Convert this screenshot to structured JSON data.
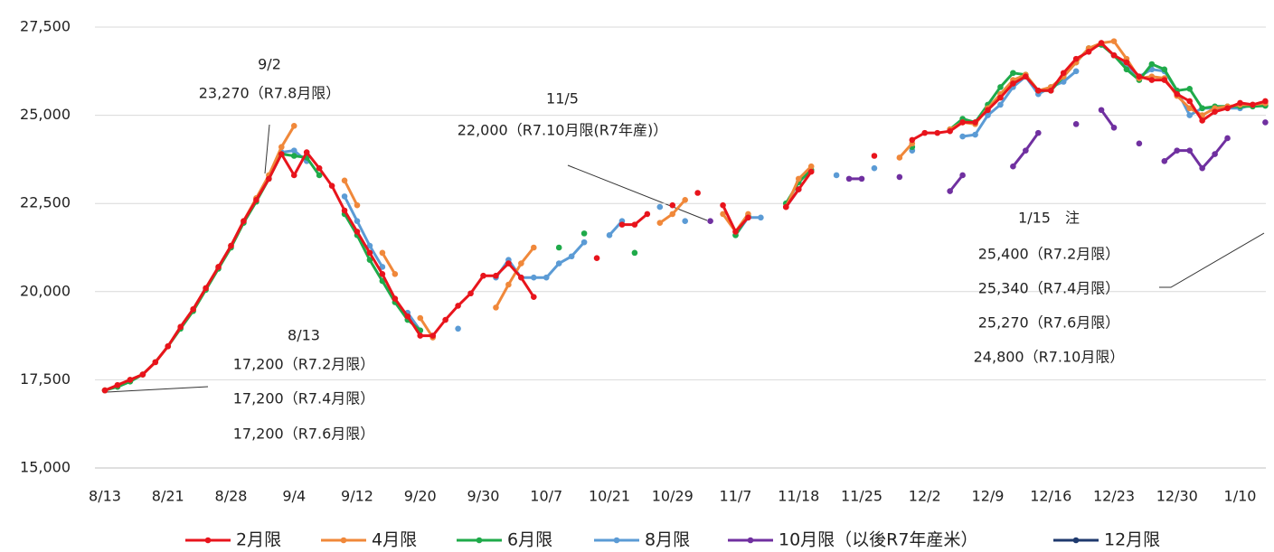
{
  "chart_data": {
    "type": "line",
    "categories": [
      "8/13",
      null,
      null,
      null,
      null,
      "8/21",
      null,
      null,
      null,
      null,
      "8/28",
      null,
      null,
      null,
      null,
      "9/4",
      null,
      null,
      null,
      null,
      "9/12",
      null,
      null,
      null,
      null,
      "9/20",
      null,
      null,
      null,
      null,
      "9/30",
      null,
      null,
      null,
      null,
      "10/7",
      null,
      null,
      null,
      null,
      "10/21",
      null,
      null,
      null,
      null,
      "10/29",
      null,
      null,
      null,
      null,
      "11/7",
      null,
      null,
      null,
      null,
      "11/18",
      null,
      null,
      null,
      null,
      "11/25",
      null,
      null,
      null,
      null,
      "12/2",
      null,
      null,
      null,
      null,
      "12/9",
      null,
      null,
      null,
      null,
      "12/16",
      null,
      null,
      null,
      null,
      "12/23",
      null,
      null,
      null,
      null,
      "12/30",
      null,
      null,
      null,
      null,
      "1/10",
      null,
      null
    ],
    "ylim": [
      15000,
      27500
    ],
    "yticks": [
      {
        "value": 15000,
        "label": "15,000"
      },
      {
        "value": 17500,
        "label": "17,500"
      },
      {
        "value": 20000,
        "label": "20,000"
      },
      {
        "value": 22500,
        "label": "22,500"
      },
      {
        "value": 25000,
        "label": "25,000"
      },
      {
        "value": 27500,
        "label": "27,500"
      }
    ],
    "grid": true,
    "legend": "bottom",
    "series": [
      {
        "name": "2月限",
        "color": "#e8141c",
        "values": [
          17200,
          17350,
          17500,
          17650,
          18000,
          18450,
          19000,
          19500,
          20100,
          20700,
          21300,
          22000,
          22600,
          23200,
          23900,
          23300,
          23950,
          23500,
          23000,
          22300,
          21700,
          21100,
          20500,
          19800,
          19300,
          18750,
          18750,
          19200,
          19600,
          19950,
          20450,
          20450,
          20800,
          20400,
          19850,
          null,
          null,
          null,
          null,
          20950,
          null,
          21900,
          21900,
          22200,
          null,
          22450,
          null,
          22800,
          null,
          22450,
          21700,
          22100,
          null,
          null,
          22400,
          22900,
          23400,
          null,
          null,
          null,
          null,
          23850,
          null,
          null,
          24300,
          24500,
          24500,
          24550,
          24800,
          24800,
          25150,
          25500,
          25900,
          26100,
          25700,
          25700,
          26200,
          26600,
          26800,
          27050,
          26700,
          26500,
          26100,
          26000,
          26000,
          25600,
          25400,
          24850,
          25100,
          25200,
          25350,
          25300,
          25400
        ]
      },
      {
        "name": "4月限",
        "color": "#f0883a",
        "values": [
          17200,
          17350,
          17500,
          17650,
          18000,
          18450,
          19000,
          19500,
          20100,
          20700,
          21300,
          22000,
          22650,
          23300,
          24100,
          24700,
          null,
          null,
          null,
          23150,
          22450,
          null,
          21100,
          20500,
          null,
          19250,
          18700,
          null,
          null,
          null,
          null,
          19550,
          20200,
          20800,
          21250,
          null,
          null,
          null,
          null,
          null,
          null,
          null,
          null,
          null,
          21950,
          22200,
          22600,
          null,
          null,
          22200,
          21700,
          22200,
          null,
          null,
          22400,
          23200,
          23550,
          null,
          null,
          null,
          null,
          null,
          null,
          23800,
          24200,
          null,
          null,
          24600,
          24800,
          24750,
          25200,
          25600,
          26000,
          26150,
          25700,
          25800,
          26100,
          26500,
          26900,
          27050,
          27100,
          26600,
          26050,
          26100,
          26050,
          25550,
          25200,
          25000,
          25200,
          25250,
          25300,
          25300,
          25340
        ]
      },
      {
        "name": "6月限",
        "color": "#1faa4a",
        "values": [
          17200,
          17300,
          17450,
          17650,
          18000,
          18450,
          18950,
          19450,
          20050,
          20650,
          21250,
          21950,
          22550,
          23200,
          23900,
          23850,
          23800,
          23300,
          null,
          22200,
          21600,
          20900,
          20300,
          19700,
          19200,
          18900,
          null,
          null,
          null,
          null,
          null,
          null,
          null,
          null,
          null,
          null,
          21250,
          null,
          21650,
          null,
          null,
          null,
          21100,
          null,
          null,
          null,
          null,
          null,
          null,
          null,
          21600,
          22150,
          null,
          null,
          22500,
          23100,
          23450,
          null,
          null,
          null,
          null,
          null,
          null,
          null,
          24100,
          null,
          null,
          24600,
          24900,
          24800,
          25300,
          25800,
          26200,
          26150,
          25700,
          25700,
          26100,
          26500,
          26900,
          27000,
          26700,
          26300,
          26000,
          26450,
          26300,
          25700,
          25750,
          25200,
          25250,
          25250,
          25250,
          25250,
          25270
        ]
      },
      {
        "name": "8月限",
        "color": "#5b9bd5",
        "values": [
          null,
          null,
          null,
          null,
          null,
          null,
          null,
          null,
          null,
          null,
          null,
          null,
          null,
          23200,
          23950,
          24000,
          23700,
          null,
          null,
          22700,
          22000,
          21300,
          20700,
          null,
          19400,
          18900,
          null,
          null,
          18950,
          null,
          null,
          20400,
          20900,
          20400,
          20400,
          20400,
          20800,
          21000,
          21400,
          null,
          21600,
          22000,
          null,
          null,
          22400,
          null,
          22000,
          null,
          null,
          null,
          21600,
          22100,
          22100,
          null,
          22500,
          null,
          null,
          null,
          23300,
          null,
          null,
          23500,
          null,
          null,
          24000,
          null,
          null,
          null,
          24400,
          24450,
          25000,
          25300,
          25800,
          26100,
          25600,
          25800,
          25950,
          26250,
          null,
          null,
          26700,
          26400,
          26100,
          26300,
          26250,
          25700,
          25000,
          25200,
          25200,
          25200,
          25200,
          25300,
          null
        ]
      },
      {
        "name": "10月限（以後R7年産米）",
        "color": "#7030a0",
        "values": [
          null,
          null,
          null,
          null,
          null,
          null,
          null,
          null,
          null,
          null,
          null,
          null,
          null,
          null,
          null,
          null,
          null,
          null,
          null,
          null,
          null,
          null,
          null,
          null,
          null,
          null,
          null,
          null,
          null,
          null,
          null,
          null,
          null,
          null,
          null,
          null,
          null,
          null,
          null,
          null,
          null,
          null,
          null,
          null,
          null,
          null,
          null,
          null,
          22000,
          null,
          null,
          null,
          null,
          null,
          22400,
          22900,
          null,
          null,
          null,
          23200,
          23200,
          null,
          null,
          23250,
          null,
          null,
          null,
          22850,
          23300,
          null,
          null,
          null,
          23550,
          24000,
          24500,
          null,
          null,
          24750,
          null,
          25150,
          24650,
          null,
          24200,
          null,
          23700,
          24000,
          24000,
          23500,
          23900,
          24350,
          null,
          null,
          24800
        ]
      },
      {
        "name": "12月限",
        "color": "#1f3a6e",
        "values": [
          null,
          null,
          null,
          null,
          null,
          null,
          null,
          null,
          null,
          null,
          null,
          null,
          null,
          null,
          null,
          null,
          null,
          null,
          null,
          null,
          null,
          null,
          null,
          null,
          null,
          null,
          null,
          null,
          null,
          null,
          null,
          null,
          null,
          null,
          null,
          null,
          null,
          null,
          null,
          null,
          null,
          null,
          null,
          null,
          null,
          null,
          null,
          null,
          null,
          null,
          null,
          null,
          null,
          null,
          null,
          null,
          null,
          null,
          null,
          null,
          null,
          null,
          null,
          null,
          null,
          null,
          null,
          null,
          null,
          null,
          null,
          null,
          null,
          null,
          null,
          null,
          null,
          null,
          null,
          null,
          null,
          null,
          null,
          null,
          null,
          null,
          null,
          null,
          null,
          null,
          null,
          null,
          null
        ]
      }
    ],
    "annotations": [
      {
        "lines": [
          "9/2",
          "23,270（R7.8月限）"
        ]
      },
      {
        "lines": [
          "11/5",
          "22,000（R7.10月限(R7年産)）"
        ]
      },
      {
        "lines": [
          "8/13",
          "17,200（R7.2月限）",
          "17,200（R7.4月限）",
          "17,200（R7.6月限）"
        ]
      },
      {
        "lines": [
          "1/15　注",
          "25,400（R7.2月限）",
          "25,340（R7.4月限）",
          "25,270（R7.6月限）",
          "24,800（R7.10月限）"
        ]
      }
    ]
  }
}
